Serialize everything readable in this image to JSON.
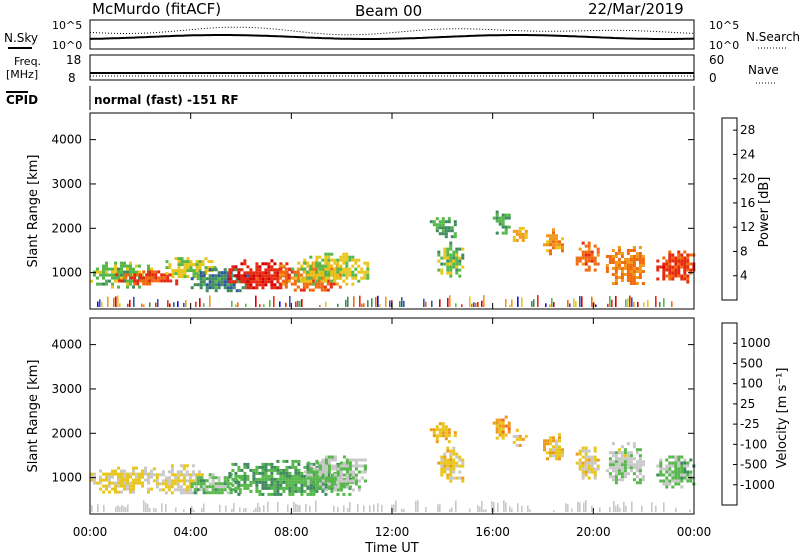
{
  "header": {
    "station": "McMurdo (fitACF)",
    "beam": "Beam 00",
    "date": "22/Mar/2019"
  },
  "noise_panel": {
    "left_label": "N.Sky",
    "right_label": "N.Search",
    "tick_top": "10^5",
    "tick_bottom": "10^0"
  },
  "freq_panel": {
    "left_label_line1": "Freq.",
    "left_label_line2": "[MHz]",
    "left_ticks": [
      "18",
      "8"
    ],
    "right_label": "Nave",
    "right_ticks": [
      "60",
      "0"
    ]
  },
  "cpid": {
    "label": "CPID",
    "value": "normal (fast) -151 RF"
  },
  "colors": {
    "power_scale": [
      "#1010e0",
      "#2d55a8",
      "#3f8a5e",
      "#56b84a",
      "#e8c61c",
      "#f09a1c",
      "#f26a10",
      "#e62a10",
      "#d80000"
    ],
    "velocity_scale": [
      "#e62a10",
      "#f26a10",
      "#f09a1c",
      "#e8c61c",
      "#c8c8c8",
      "#56b84a",
      "#3f8a5e",
      "#2d55a8",
      "#1010e0"
    ]
  },
  "chart_data": [
    {
      "type": "heatmap",
      "panel": "power",
      "ylabel": "Slant Range [km]",
      "y_ticks": [
        "1000",
        "2000",
        "3000",
        "4000"
      ],
      "ylim": [
        180,
        4600
      ],
      "x_ticks": [
        "00:00",
        "04:00",
        "08:00",
        "12:00",
        "16:00",
        "20:00",
        "00:00"
      ],
      "xlim_hours": [
        0,
        24
      ],
      "colorbar": {
        "label": "Power [dB]",
        "ticks": [
          "4",
          "8",
          "12",
          "16",
          "20",
          "24",
          "28"
        ],
        "range": [
          0,
          30
        ]
      },
      "patches": [
        {
          "t0": 0.0,
          "t1": 2.5,
          "r0": 700,
          "r1": 1250,
          "value": 12
        },
        {
          "t0": 1.0,
          "t1": 3.5,
          "r0": 750,
          "r1": 1050,
          "value": 24
        },
        {
          "t0": 3.0,
          "t1": 5.0,
          "r0": 900,
          "r1": 1350,
          "value": 14
        },
        {
          "t0": 4.0,
          "t1": 6.5,
          "r0": 600,
          "r1": 1100,
          "value": 8
        },
        {
          "t0": 5.5,
          "t1": 8.0,
          "r0": 650,
          "r1": 1300,
          "value": 26
        },
        {
          "t0": 7.5,
          "t1": 10.0,
          "r0": 600,
          "r1": 1250,
          "value": 22
        },
        {
          "t0": 8.0,
          "t1": 11.0,
          "r0": 750,
          "r1": 1450,
          "value": 14
        },
        {
          "t0": 13.8,
          "t1": 14.8,
          "r0": 900,
          "r1": 1700,
          "value": 12
        },
        {
          "t0": 13.5,
          "t1": 14.5,
          "r0": 1800,
          "r1": 2250,
          "value": 10
        },
        {
          "t0": 16.0,
          "t1": 16.6,
          "r0": 1900,
          "r1": 2400,
          "value": 10
        },
        {
          "t0": 16.8,
          "t1": 17.3,
          "r0": 1700,
          "r1": 2100,
          "value": 16
        },
        {
          "t0": 18.0,
          "t1": 18.8,
          "r0": 1400,
          "r1": 2000,
          "value": 18
        },
        {
          "t0": 19.3,
          "t1": 20.2,
          "r0": 1050,
          "r1": 1700,
          "value": 22
        },
        {
          "t0": 20.5,
          "t1": 22.0,
          "r0": 750,
          "r1": 1600,
          "value": 20
        },
        {
          "t0": 22.5,
          "t1": 24.0,
          "r0": 800,
          "r1": 1500,
          "value": 24
        }
      ]
    },
    {
      "type": "heatmap",
      "panel": "velocity",
      "ylabel": "Slant Range [km]",
      "y_ticks": [
        "1000",
        "2000",
        "3000",
        "4000"
      ],
      "ylim": [
        180,
        4600
      ],
      "x_ticks": [
        "00:00",
        "04:00",
        "08:00",
        "12:00",
        "16:00",
        "20:00",
        "00:00"
      ],
      "xlabel": "Time UT",
      "xlim_hours": [
        0,
        24
      ],
      "colorbar": {
        "label": "Velocity [m s⁻¹]",
        "ticks": [
          "1000",
          "500",
          "100",
          "25",
          "-25",
          "-100",
          "-500",
          "-1000"
        ],
        "range": [
          -1000,
          1000
        ]
      },
      "patches": [
        {
          "t0": 0.0,
          "t1": 2.5,
          "r0": 700,
          "r1": 1250,
          "value": -150
        },
        {
          "t0": 2.5,
          "t1": 4.5,
          "r0": 650,
          "r1": 1300,
          "value": -80
        },
        {
          "t0": 4.0,
          "t1": 6.0,
          "r0": 650,
          "r1": 1100,
          "value": 200
        },
        {
          "t0": 5.5,
          "t1": 10.5,
          "r0": 600,
          "r1": 1400,
          "value": 300
        },
        {
          "t0": 8.5,
          "t1": 11.0,
          "r0": 750,
          "r1": 1500,
          "value": 80
        },
        {
          "t0": 13.8,
          "t1": 14.8,
          "r0": 900,
          "r1": 1700,
          "value": -200
        },
        {
          "t0": 13.5,
          "t1": 14.5,
          "r0": 1800,
          "r1": 2250,
          "value": -300
        },
        {
          "t0": 16.0,
          "t1": 16.6,
          "r0": 1900,
          "r1": 2400,
          "value": -400
        },
        {
          "t0": 16.8,
          "t1": 17.3,
          "r0": 1700,
          "r1": 2100,
          "value": -200
        },
        {
          "t0": 18.0,
          "t1": 18.8,
          "r0": 1400,
          "r1": 2000,
          "value": -250
        },
        {
          "t0": 19.3,
          "t1": 20.2,
          "r0": 1000,
          "r1": 1700,
          "value": -200
        },
        {
          "t0": 20.5,
          "t1": 22.0,
          "r0": 900,
          "r1": 1800,
          "value": 50
        },
        {
          "t0": 22.5,
          "t1": 24.0,
          "r0": 800,
          "r1": 1500,
          "value": 200
        }
      ]
    }
  ]
}
